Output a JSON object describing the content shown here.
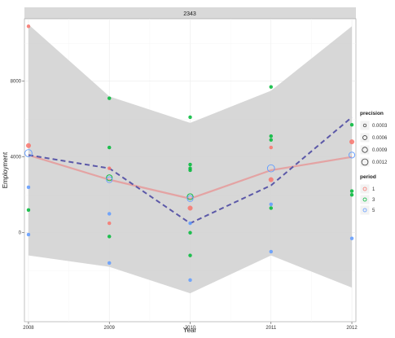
{
  "chart_data": {
    "type": "scatter",
    "title": "",
    "strip_label": "2343",
    "xlabel": "Year",
    "ylabel": "Employment",
    "xlim": [
      2007.95,
      2012.05
    ],
    "ylim": [
      -4700,
      11300
    ],
    "x_ticks": [
      2008,
      2009,
      2010,
      2011,
      2012
    ],
    "x_tick_labels": [
      "2008",
      "2009",
      "2010",
      "2011",
      "2012"
    ],
    "y_ticks": [
      0,
      4000,
      8000
    ],
    "y_tick_labels": [
      "0",
      "4000",
      "8000"
    ],
    "grid": true,
    "legend_placement": "right",
    "colors": {
      "panel": "#ffffff",
      "strip": "#d9d9d9",
      "grid": "#ebebeb",
      "ribbon": "#d3d3d3",
      "smooth_line": "#e4a3a3",
      "dashed_line": "#5b58a8",
      "period_1": "#f8766d",
      "period_3": "#00ba38",
      "period_5": "#619cff"
    },
    "confidence_band": [
      {
        "x": 2008,
        "low": -1200,
        "high": 11000
      },
      {
        "x": 2009,
        "low": -1800,
        "high": 7200
      },
      {
        "x": 2010,
        "low": -3200,
        "high": 5800
      },
      {
        "x": 2011,
        "low": -1200,
        "high": 7500
      },
      {
        "x": 2012,
        "low": -2900,
        "high": 10900
      }
    ],
    "series": [
      {
        "x": [
          2008,
          2009,
          2010,
          2011,
          2012
        ],
        "values": [
          4100,
          2800,
          1800,
          3300,
          4000
        ]
      },
      {
        "x": [
          2008,
          2009,
          2010,
          2011,
          2012
        ],
        "values": [
          4100,
          3400,
          500,
          2500,
          6100
        ]
      }
    ],
    "points": [
      {
        "x": 2008,
        "y": 10900,
        "period": "1",
        "precision": 0.0003
      },
      {
        "x": 2008,
        "y": 4600,
        "period": "1",
        "precision": 0.0006
      },
      {
        "x": 2008,
        "y": 4200,
        "period": "5",
        "precision": 0.0012
      },
      {
        "x": 2008,
        "y": 2400,
        "period": "5",
        "precision": 0.0003
      },
      {
        "x": 2008,
        "y": 1200,
        "period": "3",
        "precision": 0.0003
      },
      {
        "x": 2008,
        "y": -100,
        "period": "5",
        "precision": 0.0003
      },
      {
        "x": 2009,
        "y": 7100,
        "period": "3",
        "precision": 0.0003
      },
      {
        "x": 2009,
        "y": 4500,
        "period": "3",
        "precision": 0.0003
      },
      {
        "x": 2009,
        "y": 3400,
        "period": "1",
        "precision": 0.0003
      },
      {
        "x": 2009,
        "y": 2900,
        "period": "3",
        "precision": 0.0009
      },
      {
        "x": 2009,
        "y": 2800,
        "period": "5",
        "precision": 0.0009
      },
      {
        "x": 2009,
        "y": 1000,
        "period": "5",
        "precision": 0.0003
      },
      {
        "x": 2009,
        "y": 500,
        "period": "1",
        "precision": 0.0003
      },
      {
        "x": 2009,
        "y": -200,
        "period": "3",
        "precision": 0.0003
      },
      {
        "x": 2009,
        "y": -1600,
        "period": "5",
        "precision": 0.0003
      },
      {
        "x": 2010,
        "y": 6100,
        "period": "3",
        "precision": 0.0003
      },
      {
        "x": 2010,
        "y": 3600,
        "period": "3",
        "precision": 0.0003
      },
      {
        "x": 2010,
        "y": 3400,
        "period": "3",
        "precision": 0.0003
      },
      {
        "x": 2010,
        "y": 3300,
        "period": "3",
        "precision": 0.0003
      },
      {
        "x": 2010,
        "y": 1900,
        "period": "3",
        "precision": 0.0009
      },
      {
        "x": 2010,
        "y": 1800,
        "period": "5",
        "precision": 0.0009
      },
      {
        "x": 2010,
        "y": 1300,
        "period": "1",
        "precision": 0.0006
      },
      {
        "x": 2010,
        "y": 500,
        "period": "5",
        "precision": 0.0003
      },
      {
        "x": 2010,
        "y": 0,
        "period": "3",
        "precision": 0.0003
      },
      {
        "x": 2010,
        "y": -1200,
        "period": "3",
        "precision": 0.0003
      },
      {
        "x": 2010,
        "y": -2500,
        "period": "5",
        "precision": 0.0003
      },
      {
        "x": 2011,
        "y": 7700,
        "period": "3",
        "precision": 0.0003
      },
      {
        "x": 2011,
        "y": 5100,
        "period": "3",
        "precision": 0.0003
      },
      {
        "x": 2011,
        "y": 4900,
        "period": "3",
        "precision": 0.0003
      },
      {
        "x": 2011,
        "y": 4500,
        "period": "1",
        "precision": 0.0003
      },
      {
        "x": 2011,
        "y": 3400,
        "period": "5",
        "precision": 0.0012
      },
      {
        "x": 2011,
        "y": 2800,
        "period": "1",
        "precision": 0.0006
      },
      {
        "x": 2011,
        "y": 1500,
        "period": "5",
        "precision": 0.0003
      },
      {
        "x": 2011,
        "y": 1300,
        "period": "3",
        "precision": 0.0003
      },
      {
        "x": 2011,
        "y": -1000,
        "period": "5",
        "precision": 0.0003
      },
      {
        "x": 2012,
        "y": 5700,
        "period": "3",
        "precision": 0.0003
      },
      {
        "x": 2012,
        "y": 4800,
        "period": "1",
        "precision": 0.0006
      },
      {
        "x": 2012,
        "y": 4100,
        "period": "5",
        "precision": 0.0009
      },
      {
        "x": 2012,
        "y": 2200,
        "period": "3",
        "precision": 0.0003
      },
      {
        "x": 2012,
        "y": 2000,
        "period": "3",
        "precision": 0.0003
      },
      {
        "x": 2012,
        "y": -300,
        "period": "5",
        "precision": 0.0003
      }
    ],
    "legends": [
      {
        "title": "precision",
        "items": [
          {
            "label": "0.0003",
            "value": 0.0003
          },
          {
            "label": "0.0006",
            "value": 0.0006
          },
          {
            "label": "0.0009",
            "value": 0.0009
          },
          {
            "label": "0.0012",
            "value": 0.0012
          }
        ]
      },
      {
        "title": "period",
        "items": [
          {
            "label": "1",
            "period": "1"
          },
          {
            "label": "3",
            "period": "3"
          },
          {
            "label": "5",
            "period": "5"
          }
        ]
      }
    ]
  }
}
